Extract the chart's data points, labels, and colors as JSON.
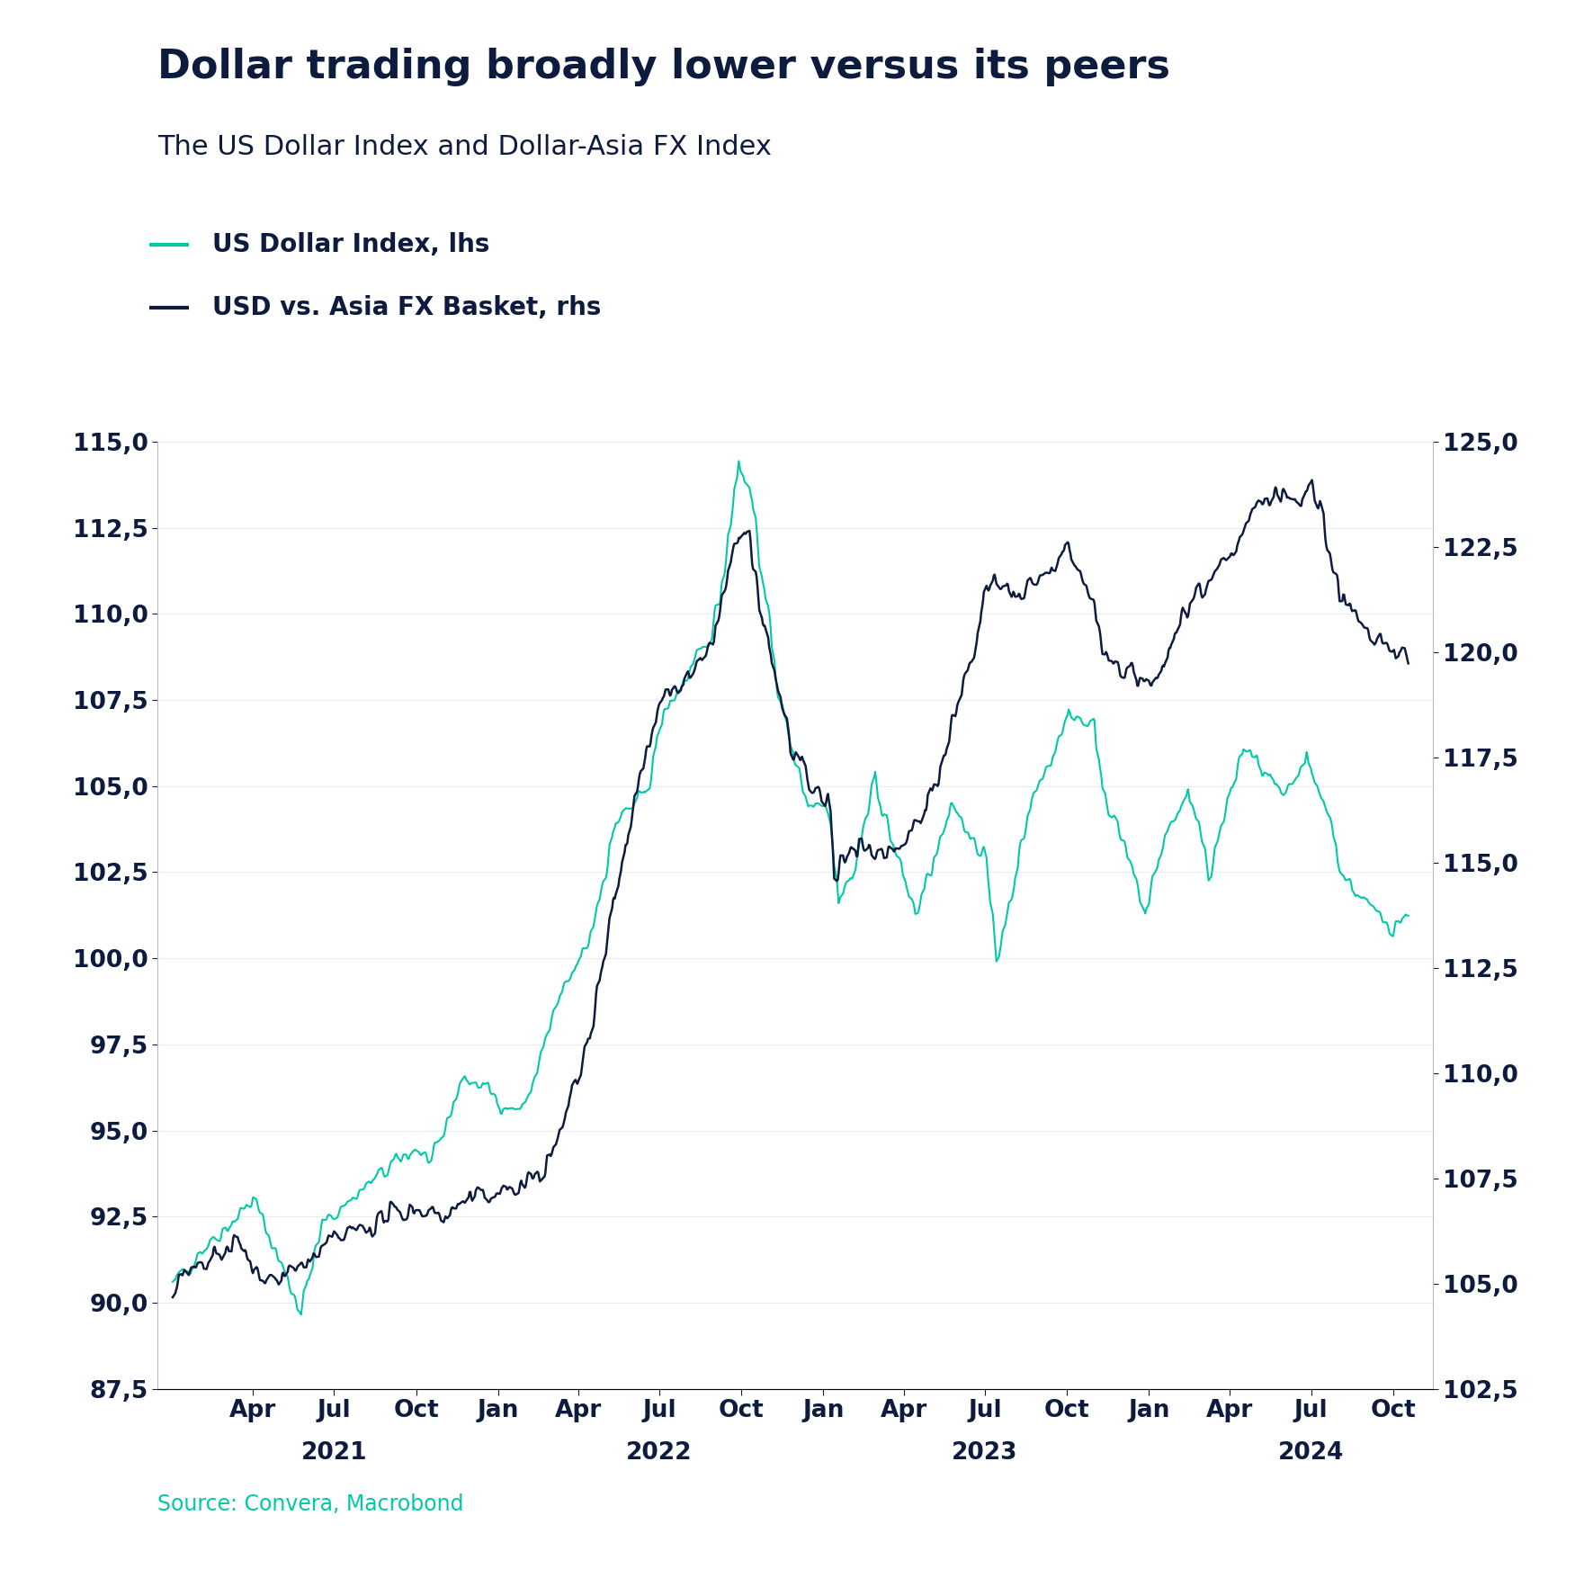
{
  "title": "Dollar trading broadly lower versus its peers",
  "subtitle": "The US Dollar Index and Dollar-Asia FX Index",
  "legend1": "US Dollar Index, lhs",
  "legend2": "USD vs. Asia FX Basket, rhs",
  "source": "Source: Convera, Macrobond",
  "lhs_color": "#00C9A7",
  "rhs_color": "#0D1B3E",
  "lhs_ylim": [
    87.5,
    115.0
  ],
  "rhs_ylim": [
    102.5,
    125.0
  ],
  "lhs_yticks": [
    87.5,
    90.0,
    92.5,
    95.0,
    97.5,
    100.0,
    102.5,
    105.0,
    107.5,
    110.0,
    112.5,
    115.0
  ],
  "rhs_yticks": [
    102.5,
    105.0,
    107.5,
    110.0,
    112.5,
    115.0,
    117.5,
    120.0,
    122.5,
    125.0
  ],
  "title_color": "#0D1B3E",
  "tick_label_color": "#0D1B3E",
  "background_color": "#FFFFFF",
  "lhs_linewidth": 1.5,
  "rhs_linewidth": 1.8,
  "title_fontsize": 32,
  "subtitle_fontsize": 22,
  "legend_fontsize": 20,
  "tick_fontsize": 19,
  "source_fontsize": 17
}
